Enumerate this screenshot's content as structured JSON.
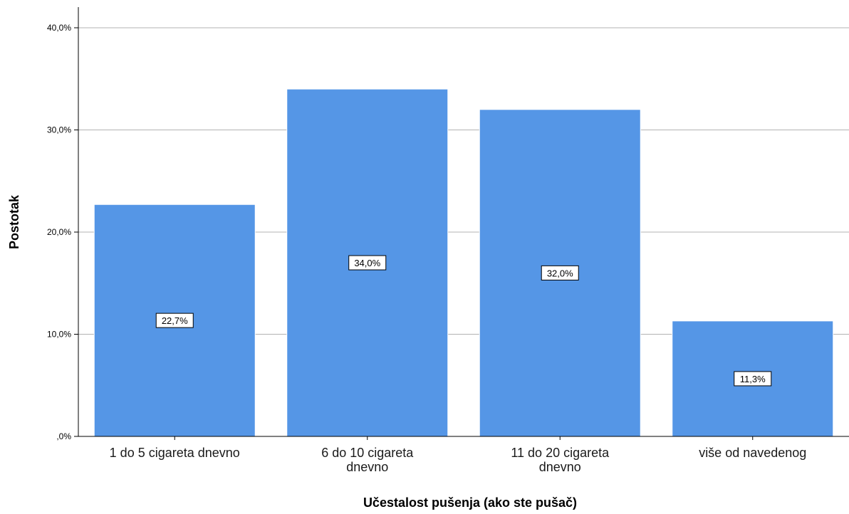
{
  "chart_data": {
    "type": "bar",
    "categories": [
      [
        "1 do 5 cigareta dnevno"
      ],
      [
        "6 do 10 cigareta",
        "dnevno"
      ],
      [
        "11 do 20 cigareta",
        "dnevno"
      ],
      [
        "više od navedenog"
      ]
    ],
    "values": [
      22.7,
      34.0,
      32.0,
      11.3
    ],
    "value_labels": [
      "22,7%",
      "34,0%",
      "32,0%",
      "11,3%"
    ],
    "xlabel": "Učestalost pušenja (ako ste pušač)",
    "ylabel": "Postotak",
    "ylim": [
      0,
      42
    ],
    "yticks": [
      0,
      10,
      20,
      30,
      40
    ],
    "ytick_labels": [
      ",0%",
      "10,0%",
      "20,0%",
      "30,0%",
      "40,0%"
    ],
    "grid": true,
    "bar_color": "#5596e6",
    "grid_color": "#b3b3b3"
  }
}
